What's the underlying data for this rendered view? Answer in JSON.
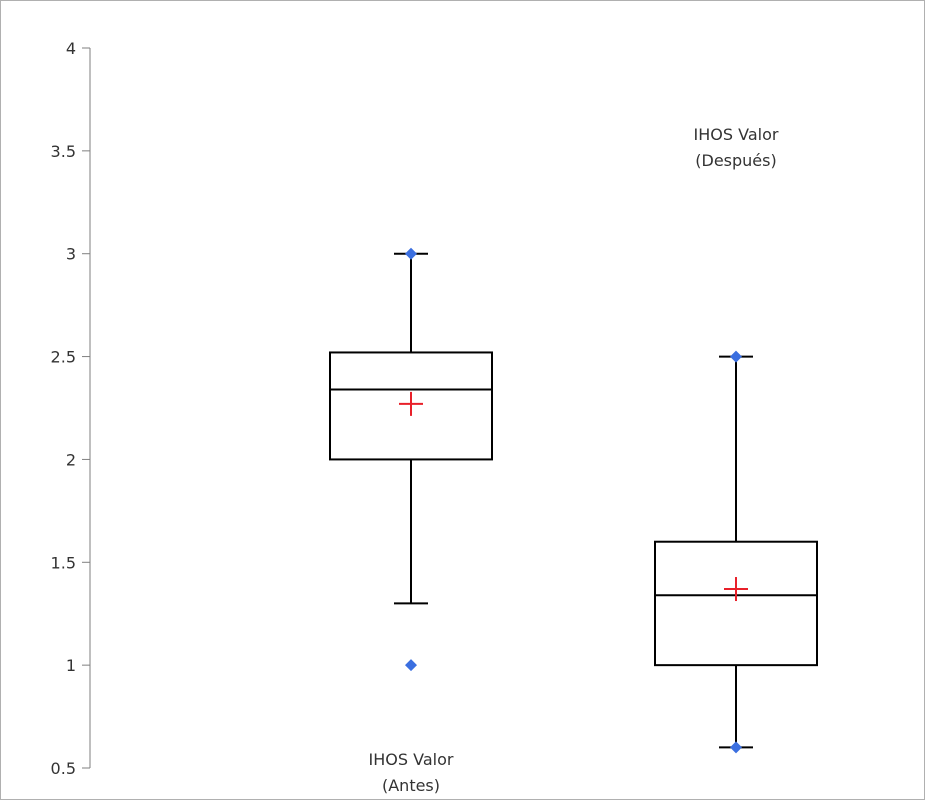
{
  "chart_data": {
    "type": "box",
    "ylim": [
      0.5,
      4
    ],
    "yticks": [
      0.5,
      1,
      1.5,
      2,
      2.5,
      3,
      3.5,
      4
    ],
    "grid": false,
    "series": [
      {
        "label_lines": [
          "IHOS Valor",
          "(Antes)"
        ],
        "label_position": "bottom",
        "whisker_low": 1.3,
        "q1": 2.0,
        "median": 2.34,
        "q3": 2.52,
        "whisker_high": 3.0,
        "mean": 2.27,
        "min": 1.0,
        "max": 3.0,
        "outliers": [
          1.0
        ]
      },
      {
        "label_lines": [
          "IHOS Valor",
          "(Después)"
        ],
        "label_position": "top",
        "whisker_low": 0.6,
        "q1": 1.0,
        "median": 1.34,
        "q3": 1.6,
        "whisker_high": 2.5,
        "mean": 1.37,
        "min": 0.6,
        "max": 2.5,
        "outliers": []
      }
    ],
    "colors": {
      "box": "#000000",
      "mean_marker": "#e8202a",
      "extreme_marker": "#3b6fe0",
      "axis": "#7f7f7f"
    }
  }
}
